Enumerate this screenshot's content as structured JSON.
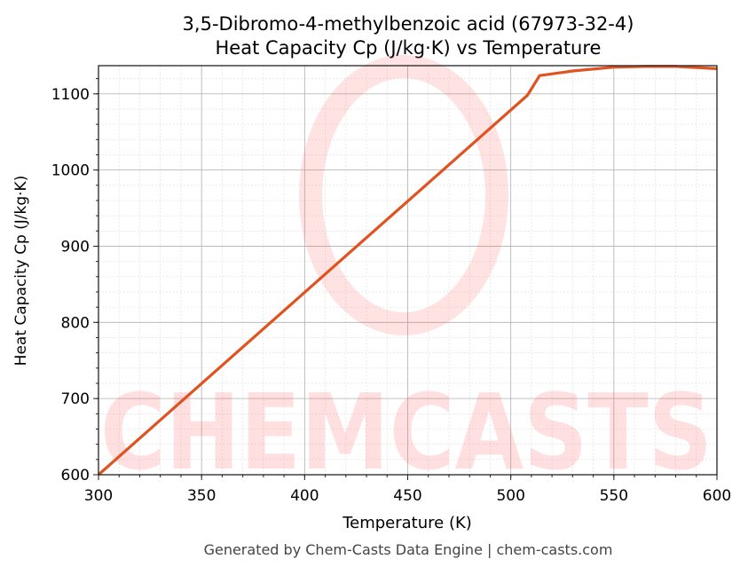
{
  "chart_data": {
    "type": "line",
    "title": "3,5-Dibromo-4-methylbenzoic acid (67973-32-4)",
    "subtitle": "Heat Capacity Cp (J/kg·K) vs Temperature",
    "xlabel": "Temperature (K)",
    "ylabel": "Heat Capacity Cp (J/kg·K)",
    "xlim": [
      300,
      600
    ],
    "ylim": [
      600,
      1137
    ],
    "xticks": [
      300,
      350,
      400,
      450,
      500,
      550,
      600
    ],
    "yticks": [
      600,
      700,
      800,
      900,
      1000,
      1100
    ],
    "grid": true,
    "line_color": "#e0521f",
    "series": [
      {
        "x": [
          300,
          508,
          514,
          530,
          550,
          565,
          580,
          600
        ],
        "y": [
          600,
          1098,
          1124,
          1130,
          1135,
          1136,
          1136,
          1133
        ]
      }
    ],
    "watermark": "CHEMCASTS",
    "footer": "Generated by Chem-Casts Data Engine | chem-casts.com"
  }
}
